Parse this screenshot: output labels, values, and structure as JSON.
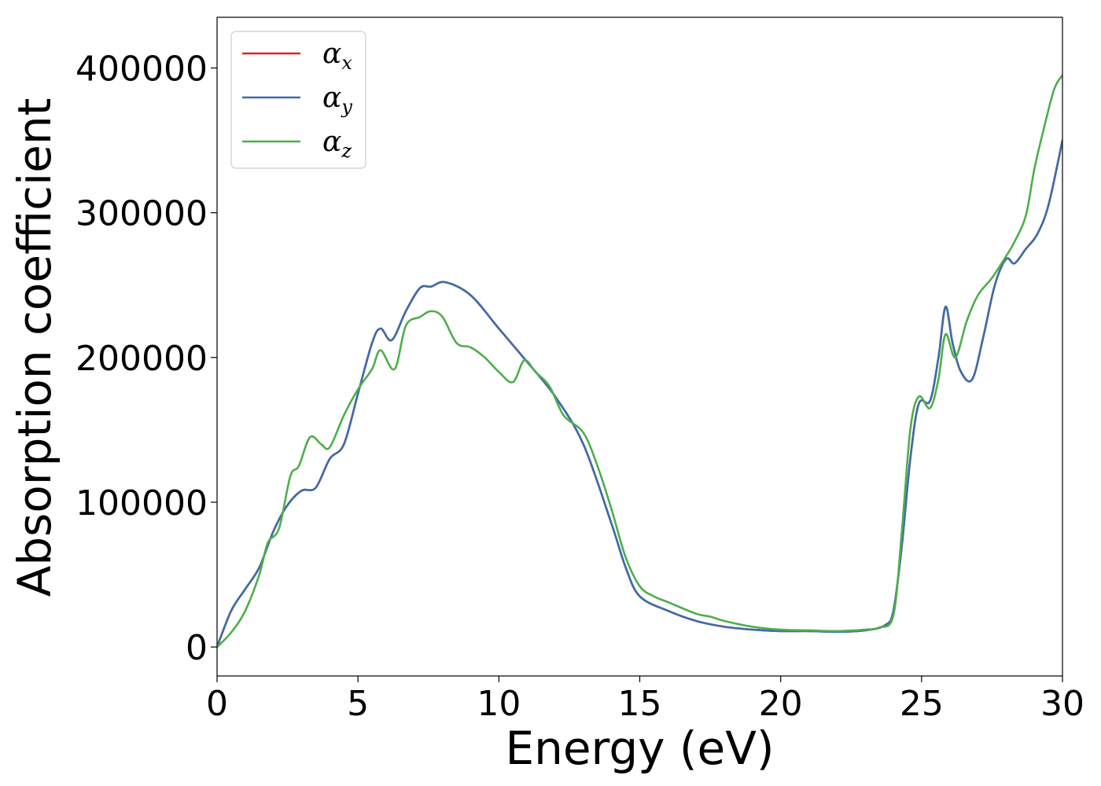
{
  "chart_data": {
    "type": "line",
    "xlabel": "Energy (eV)",
    "ylabel": "Absorption coefficient",
    "xlim": [
      0,
      30
    ],
    "ylim": [
      -20000,
      435000
    ],
    "xticks": [
      0,
      5,
      10,
      15,
      20,
      25,
      30
    ],
    "yticks": [
      0,
      100000,
      200000,
      300000,
      400000
    ],
    "grid": false,
    "legend_position": "top-left",
    "series": [
      {
        "name": "α",
        "sub": "x",
        "color": "#d62728",
        "x": [
          0,
          0.5,
          1,
          1.5,
          2,
          2.5,
          3,
          3.5,
          4,
          4.5,
          5,
          5.5,
          5.8,
          6.2,
          6.7,
          7.2,
          7.6,
          8.1,
          9,
          10,
          11,
          12,
          13,
          14,
          14.5,
          15,
          16,
          17,
          18,
          19,
          20,
          21,
          22,
          23,
          23.7,
          24,
          24.3,
          24.6,
          24.9,
          25.3,
          25.6,
          25.85,
          26.1,
          26.4,
          26.8,
          27.2,
          27.6,
          28,
          28.3,
          28.7,
          29.1,
          29.5,
          30
        ],
        "y": [
          0,
          25000,
          40000,
          55000,
          80000,
          98000,
          108000,
          110000,
          130000,
          140000,
          175000,
          210000,
          220000,
          212000,
          232000,
          248000,
          249000,
          252000,
          243000,
          220000,
          197000,
          173000,
          140000,
          85000,
          55000,
          35000,
          25000,
          18000,
          14000,
          12000,
          11000,
          11000,
          10500,
          11500,
          15000,
          25000,
          70000,
          130000,
          168000,
          170000,
          200000,
          235000,
          210000,
          190000,
          185000,
          215000,
          250000,
          268000,
          265000,
          275000,
          285000,
          305000,
          350000
        ]
      },
      {
        "name": "α",
        "sub": "y",
        "color": "#3c6ea9",
        "x": [
          0,
          0.5,
          1,
          1.5,
          2,
          2.5,
          3,
          3.5,
          4,
          4.5,
          5,
          5.5,
          5.8,
          6.2,
          6.7,
          7.2,
          7.6,
          8.1,
          9,
          10,
          11,
          12,
          13,
          14,
          14.5,
          15,
          16,
          17,
          18,
          19,
          20,
          21,
          22,
          23,
          23.7,
          24,
          24.3,
          24.6,
          24.9,
          25.3,
          25.6,
          25.85,
          26.1,
          26.4,
          26.8,
          27.2,
          27.6,
          28,
          28.3,
          28.7,
          29.1,
          29.5,
          30
        ],
        "y": [
          0,
          25000,
          40000,
          55000,
          80000,
          98000,
          108000,
          110000,
          130000,
          140000,
          175000,
          210000,
          220000,
          212000,
          232000,
          248000,
          249000,
          252000,
          243000,
          220000,
          197000,
          173000,
          140000,
          85000,
          55000,
          35000,
          25000,
          18000,
          14000,
          12000,
          11000,
          11000,
          10500,
          11500,
          15000,
          25000,
          70000,
          130000,
          168000,
          170000,
          200000,
          235000,
          210000,
          190000,
          185000,
          215000,
          250000,
          268000,
          265000,
          275000,
          285000,
          305000,
          350000
        ]
      },
      {
        "name": "α",
        "sub": "z",
        "color": "#4daf4a",
        "x": [
          0,
          0.5,
          1,
          1.5,
          1.8,
          2.2,
          2.6,
          2.9,
          3.3,
          3.7,
          4,
          4.5,
          5,
          5.5,
          5.8,
          6.3,
          6.7,
          7.2,
          7.6,
          8,
          8.5,
          9,
          9.5,
          10,
          10.5,
          10.9,
          11.3,
          11.8,
          12.3,
          13,
          13.5,
          14,
          14.5,
          15,
          15.5,
          16,
          17,
          17.5,
          18,
          19,
          20,
          21,
          22,
          23,
          23.5,
          24,
          24.3,
          24.6,
          24.9,
          25.3,
          25.6,
          25.85,
          26.2,
          26.6,
          27,
          27.5,
          28,
          28.3,
          28.7,
          29,
          29.3,
          29.7,
          30
        ],
        "y": [
          0,
          10000,
          25000,
          50000,
          72000,
          82000,
          118000,
          125000,
          145000,
          140000,
          138000,
          160000,
          178000,
          192000,
          205000,
          192000,
          222000,
          228000,
          232000,
          228000,
          210000,
          207000,
          200000,
          190000,
          183000,
          198000,
          190000,
          180000,
          160000,
          148000,
          125000,
          95000,
          62000,
          42000,
          35000,
          31000,
          23000,
          21000,
          18000,
          14000,
          12000,
          11500,
          11000,
          12000,
          13500,
          22000,
          80000,
          150000,
          173000,
          165000,
          185000,
          216000,
          200000,
          225000,
          243000,
          255000,
          270000,
          280000,
          298000,
          330000,
          355000,
          385000,
          395000
        ]
      }
    ]
  }
}
